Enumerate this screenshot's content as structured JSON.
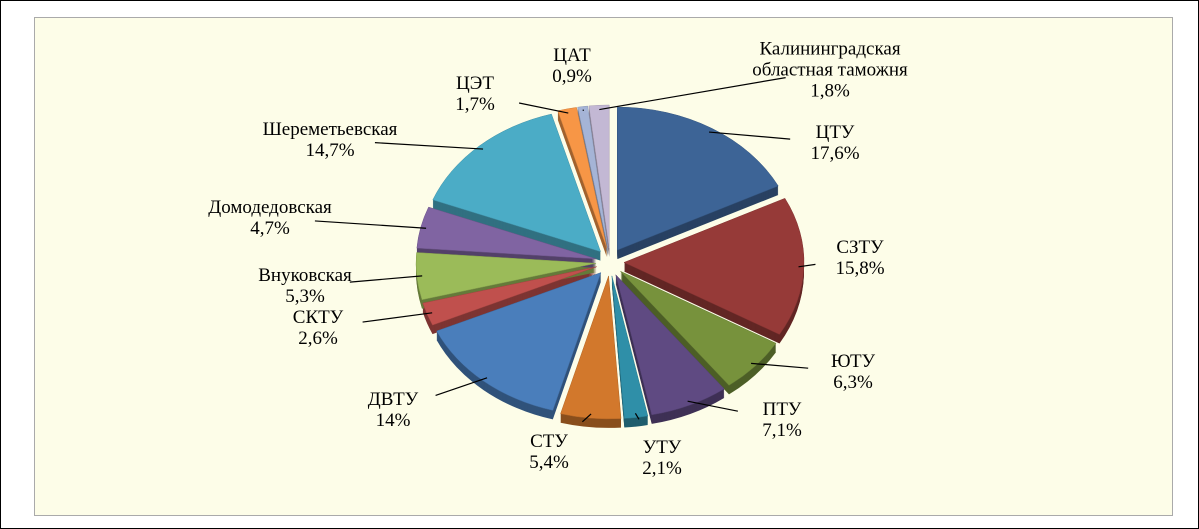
{
  "chart_data": {
    "type": "pie",
    "categories": [
      "ЦТУ",
      "СЗТУ",
      "ЮТУ",
      "ПТУ",
      "УТУ",
      "СТУ",
      "ДВТУ",
      "СКТУ",
      "Внуковская",
      "Домодедовская",
      "Шереметьевская",
      "ЦЭТ",
      "ЦАТ",
      "Калининградская областная таможня"
    ],
    "values": [
      17.6,
      15.8,
      6.3,
      7.1,
      2.1,
      5.4,
      14,
      2.6,
      5.3,
      4.7,
      14.7,
      1.7,
      0.9,
      1.8
    ],
    "value_labels": [
      "17,6%",
      "15,8%",
      "6,3%",
      "7,1%",
      "2,1%",
      "5,4%",
      "14%",
      "2,6%",
      "5,3%",
      "4,7%",
      "14,7%",
      "1,7%",
      "0,9%",
      "1,8%"
    ],
    "colors": [
      "#3d6496",
      "#963a38",
      "#77923c",
      "#5f4a82",
      "#2f8fa8",
      "#d2782c",
      "#4a7ebb",
      "#c0504d",
      "#9bbb59",
      "#8064a2",
      "#4bacc6",
      "#f79646",
      "#a5b4d6",
      "#c3b8d4"
    ]
  }
}
